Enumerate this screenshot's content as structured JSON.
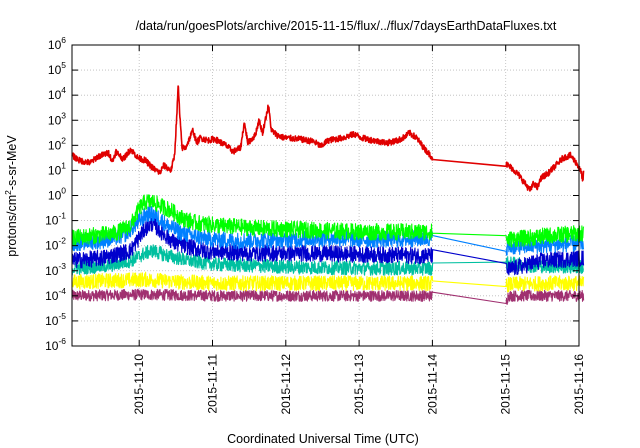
{
  "chart_data": {
    "type": "line",
    "title": "/data/run/goesPlots/archive/2015-11-15/flux/../flux/7daysEarthDataFluxes.txt",
    "xlabel": "Coordinated Universal Time (UTC)",
    "ylabel": {
      "pre": "protons/cm",
      "sup": "2",
      "post": "-s-sr-MeV"
    },
    "x_range": [
      "2015-11-09 02:00",
      "2015-11-16 00:00"
    ],
    "x_ticks": [
      "2015-11-10",
      "2015-11-11",
      "2015-11-12",
      "2015-11-13",
      "2015-11-14",
      "2015-11-15",
      "2015-11-16"
    ],
    "y_scale": "log",
    "y_range": [
      1e-06,
      1000000.0
    ],
    "y_ticks": [
      {
        "base": "10",
        "exp": "-6",
        "value": -6
      },
      {
        "base": "10",
        "exp": "-5",
        "value": -5
      },
      {
        "base": "10",
        "exp": "-4",
        "value": -4
      },
      {
        "base": "10",
        "exp": "-3",
        "value": -3
      },
      {
        "base": "10",
        "exp": "-2",
        "value": -2
      },
      {
        "base": "10",
        "exp": "-1",
        "value": -1
      },
      {
        "base": "10",
        "exp": "0",
        "value": 0
      },
      {
        "base": "10",
        "exp": "1",
        "value": 1
      },
      {
        "base": "10",
        "exp": "2",
        "value": 2
      },
      {
        "base": "10",
        "exp": "3",
        "value": 3
      },
      {
        "base": "10",
        "exp": "4",
        "value": 4
      },
      {
        "base": "10",
        "exp": "5",
        "value": 5
      },
      {
        "base": "10",
        "exp": "6",
        "value": 6
      }
    ],
    "grid": true,
    "data_gap_days": [
      4.92,
      5.92
    ],
    "series": [
      {
        "color": "#e00000",
        "noise_log": 0.12,
        "points": [
          [
            0.0,
            1.6
          ],
          [
            0.1,
            1.4
          ],
          [
            0.25,
            1.3
          ],
          [
            0.35,
            1.55
          ],
          [
            0.5,
            1.7
          ],
          [
            0.55,
            1.35
          ],
          [
            0.6,
            1.75
          ],
          [
            0.7,
            1.45
          ],
          [
            0.8,
            1.85
          ],
          [
            0.9,
            1.5
          ],
          [
            1.0,
            1.4
          ],
          [
            1.1,
            1.1
          ],
          [
            1.2,
            0.9
          ],
          [
            1.25,
            1.2
          ],
          [
            1.35,
            1.0
          ],
          [
            1.4,
            1.6
          ],
          [
            1.45,
            4.4
          ],
          [
            1.47,
            3.2
          ],
          [
            1.5,
            1.9
          ],
          [
            1.55,
            1.9
          ],
          [
            1.65,
            2.6
          ],
          [
            1.7,
            2.1
          ],
          [
            1.75,
            2.3
          ],
          [
            1.85,
            2.2
          ],
          [
            1.95,
            2.25
          ],
          [
            2.1,
            2.0
          ],
          [
            2.2,
            1.75
          ],
          [
            2.3,
            1.9
          ],
          [
            2.35,
            2.9
          ],
          [
            2.4,
            2.1
          ],
          [
            2.5,
            2.4
          ],
          [
            2.55,
            3.0
          ],
          [
            2.6,
            2.5
          ],
          [
            2.68,
            3.6
          ],
          [
            2.72,
            2.6
          ],
          [
            2.8,
            2.4
          ],
          [
            2.9,
            2.3
          ],
          [
            3.1,
            2.25
          ],
          [
            3.3,
            2.15
          ],
          [
            3.4,
            1.95
          ],
          [
            3.45,
            2.1
          ],
          [
            3.5,
            2.2
          ],
          [
            3.7,
            2.3
          ],
          [
            3.85,
            2.45
          ],
          [
            3.95,
            2.3
          ],
          [
            4.1,
            2.2
          ],
          [
            4.3,
            2.1
          ],
          [
            4.45,
            2.2
          ],
          [
            4.55,
            2.35
          ],
          [
            4.6,
            2.5
          ],
          [
            4.7,
            2.3
          ],
          [
            4.8,
            1.9
          ],
          [
            4.92,
            1.5
          ],
          [
            5.92,
            1.25
          ],
          [
            6.0,
            1.1
          ],
          [
            6.1,
            0.8
          ],
          [
            6.2,
            0.4
          ],
          [
            6.25,
            0.2
          ],
          [
            6.3,
            0.5
          ],
          [
            6.35,
            0.3
          ],
          [
            6.4,
            0.7
          ],
          [
            6.5,
            0.9
          ],
          [
            6.6,
            1.2
          ],
          [
            6.7,
            1.5
          ],
          [
            6.8,
            1.6
          ],
          [
            6.88,
            1.3
          ],
          [
            6.95,
            0.9
          ],
          [
            6.97,
            0.55
          ],
          [
            6.98,
            0.9
          ]
        ]
      },
      {
        "color": "#00ff00",
        "noise_log": 0.33,
        "points": [
          [
            0.0,
            -1.7
          ],
          [
            0.3,
            -1.6
          ],
          [
            0.6,
            -1.5
          ],
          [
            0.8,
            -1.2
          ],
          [
            0.92,
            -0.5
          ],
          [
            1.0,
            -0.25
          ],
          [
            1.1,
            -0.25
          ],
          [
            1.2,
            -0.4
          ],
          [
            1.35,
            -0.6
          ],
          [
            1.5,
            -0.9
          ],
          [
            1.7,
            -1.1
          ],
          [
            2.0,
            -1.2
          ],
          [
            2.5,
            -1.3
          ],
          [
            3.0,
            -1.35
          ],
          [
            3.5,
            -1.4
          ],
          [
            4.0,
            -1.45
          ],
          [
            4.5,
            -1.45
          ],
          [
            4.92,
            -1.45
          ],
          [
            5.92,
            -1.75
          ],
          [
            6.2,
            -1.7
          ],
          [
            6.5,
            -1.6
          ],
          [
            6.98,
            -1.5
          ]
        ]
      },
      {
        "color": "#0080ff",
        "noise_log": 0.33,
        "points": [
          [
            0.0,
            -1.9
          ],
          [
            0.4,
            -1.8
          ],
          [
            0.7,
            -1.6
          ],
          [
            0.85,
            -1.2
          ],
          [
            1.0,
            -0.8
          ],
          [
            1.05,
            -0.7
          ],
          [
            1.15,
            -0.8
          ],
          [
            1.3,
            -1.2
          ],
          [
            1.5,
            -1.5
          ],
          [
            1.8,
            -1.7
          ],
          [
            2.2,
            -1.8
          ],
          [
            3.0,
            -1.75
          ],
          [
            3.5,
            -1.7
          ],
          [
            4.0,
            -1.75
          ],
          [
            4.5,
            -1.75
          ],
          [
            4.92,
            -1.7
          ],
          [
            5.92,
            -2.05
          ],
          [
            6.3,
            -2.0
          ],
          [
            6.98,
            -1.9
          ]
        ]
      },
      {
        "color": "#0000cc",
        "noise_log": 0.33,
        "points": [
          [
            0.0,
            -2.6
          ],
          [
            0.4,
            -2.5
          ],
          [
            0.8,
            -2.2
          ],
          [
            1.0,
            -1.3
          ],
          [
            1.1,
            -1.1
          ],
          [
            1.2,
            -1.4
          ],
          [
            1.4,
            -1.9
          ],
          [
            1.8,
            -2.2
          ],
          [
            2.4,
            -2.3
          ],
          [
            3.2,
            -2.3
          ],
          [
            4.0,
            -2.35
          ],
          [
            4.92,
            -2.4
          ],
          [
            5.92,
            -3.0
          ],
          [
            6.4,
            -2.6
          ],
          [
            6.98,
            -2.5
          ]
        ]
      },
      {
        "color": "#00c0a0",
        "noise_log": 0.28,
        "points": [
          [
            0.0,
            -2.9
          ],
          [
            0.5,
            -2.8
          ],
          [
            0.8,
            -2.6
          ],
          [
            1.0,
            -2.3
          ],
          [
            1.1,
            -2.2
          ],
          [
            1.3,
            -2.4
          ],
          [
            1.6,
            -2.6
          ],
          [
            2.0,
            -2.75
          ],
          [
            3.0,
            -2.85
          ],
          [
            4.0,
            -2.9
          ],
          [
            4.92,
            -2.9
          ],
          [
            5.92,
            -2.7
          ],
          [
            6.3,
            -2.8
          ],
          [
            6.98,
            -2.85
          ]
        ]
      },
      {
        "color": "#ffff00",
        "noise_log": 0.3,
        "points": [
          [
            0.0,
            -3.45
          ],
          [
            0.5,
            -3.4
          ],
          [
            1.0,
            -3.35
          ],
          [
            1.5,
            -3.45
          ],
          [
            2.0,
            -3.5
          ],
          [
            3.0,
            -3.5
          ],
          [
            4.0,
            -3.5
          ],
          [
            4.92,
            -3.5
          ],
          [
            5.92,
            -3.55
          ],
          [
            6.5,
            -3.5
          ],
          [
            6.98,
            -3.5
          ]
        ]
      },
      {
        "color": "#a03070",
        "noise_log": 0.22,
        "points": [
          [
            0.0,
            -4.0
          ],
          [
            1.0,
            -3.95
          ],
          [
            2.0,
            -4.0
          ],
          [
            3.0,
            -4.0
          ],
          [
            4.0,
            -4.0
          ],
          [
            4.92,
            -4.0
          ],
          [
            5.0,
            -4.3
          ],
          [
            5.92,
            -4.3
          ],
          [
            5.95,
            -4.0
          ],
          [
            6.98,
            -4.0
          ]
        ]
      }
    ]
  }
}
